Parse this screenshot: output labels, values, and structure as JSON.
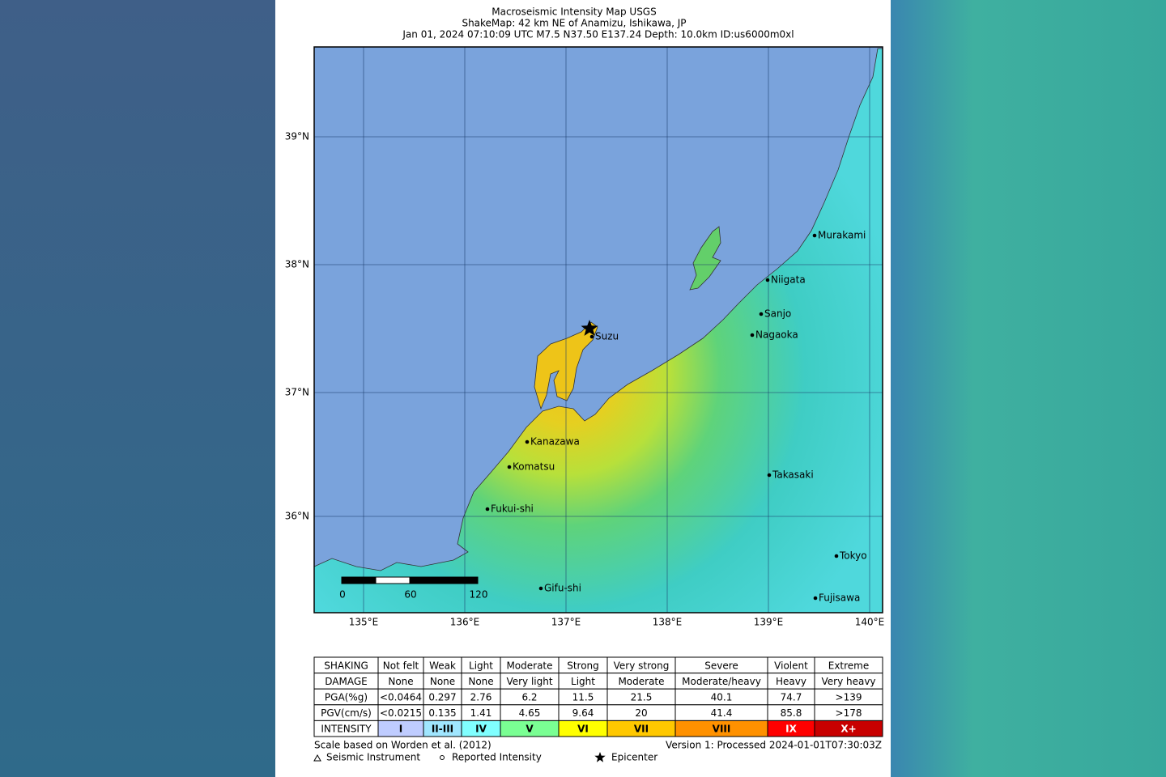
{
  "header": {
    "title": "Macroseismic Intensity Map USGS",
    "subtitle": "ShakeMap: 42 km NE of Anamizu, Ishikawa, JP",
    "event": "Jan 01, 2024 07:10:09 UTC M7.5 N37.50 E137.24 Depth: 10.0km ID:us6000m0xl"
  },
  "map": {
    "lat_labels": [
      "39°N",
      "38°N",
      "37°N",
      "36°N"
    ],
    "lon_labels": [
      "135°E",
      "136°E",
      "137°E",
      "138°E",
      "139°E",
      "140°E"
    ],
    "cities": [
      "Murakami",
      "Niigata",
      "Sanjo",
      "Nagaoka",
      "Suzu",
      "Kanazawa",
      "Komatsu",
      "Fukui-shi",
      "Takasaki",
      "Tokyo",
      "Gifu-shi",
      "Fujisawa"
    ],
    "scale_labels": [
      "0",
      "60",
      "120"
    ]
  },
  "legend": {
    "rows": [
      [
        "SHAKING",
        "Not felt",
        "Weak",
        "Light",
        "Moderate",
        "Strong",
        "Very strong",
        "Severe",
        "Violent",
        "Extreme"
      ],
      [
        "DAMAGE",
        "None",
        "None",
        "None",
        "Very light",
        "Light",
        "Moderate",
        "Moderate/heavy",
        "Heavy",
        "Very heavy"
      ],
      [
        "PGA(%g)",
        "<0.0464",
        "0.297",
        "2.76",
        "6.2",
        "11.5",
        "21.5",
        "40.1",
        "74.7",
        ">139"
      ],
      [
        "PGV(cm/s)",
        "<0.0215",
        "0.135",
        "1.41",
        "4.65",
        "9.64",
        "20",
        "41.4",
        "85.8",
        ">178"
      ],
      [
        "INTENSITY",
        "I",
        "II-III",
        "IV",
        "V",
        "VI",
        "VII",
        "VIII",
        "IX",
        "X+"
      ]
    ]
  },
  "footer": {
    "citation": "Scale based on Worden et al. (2012)",
    "version": "Version 1: Processed 2024-01-01T07:30:03Z",
    "symbols": [
      "Seismic Instrument",
      "Reported Intensity",
      "Epicenter"
    ]
  }
}
